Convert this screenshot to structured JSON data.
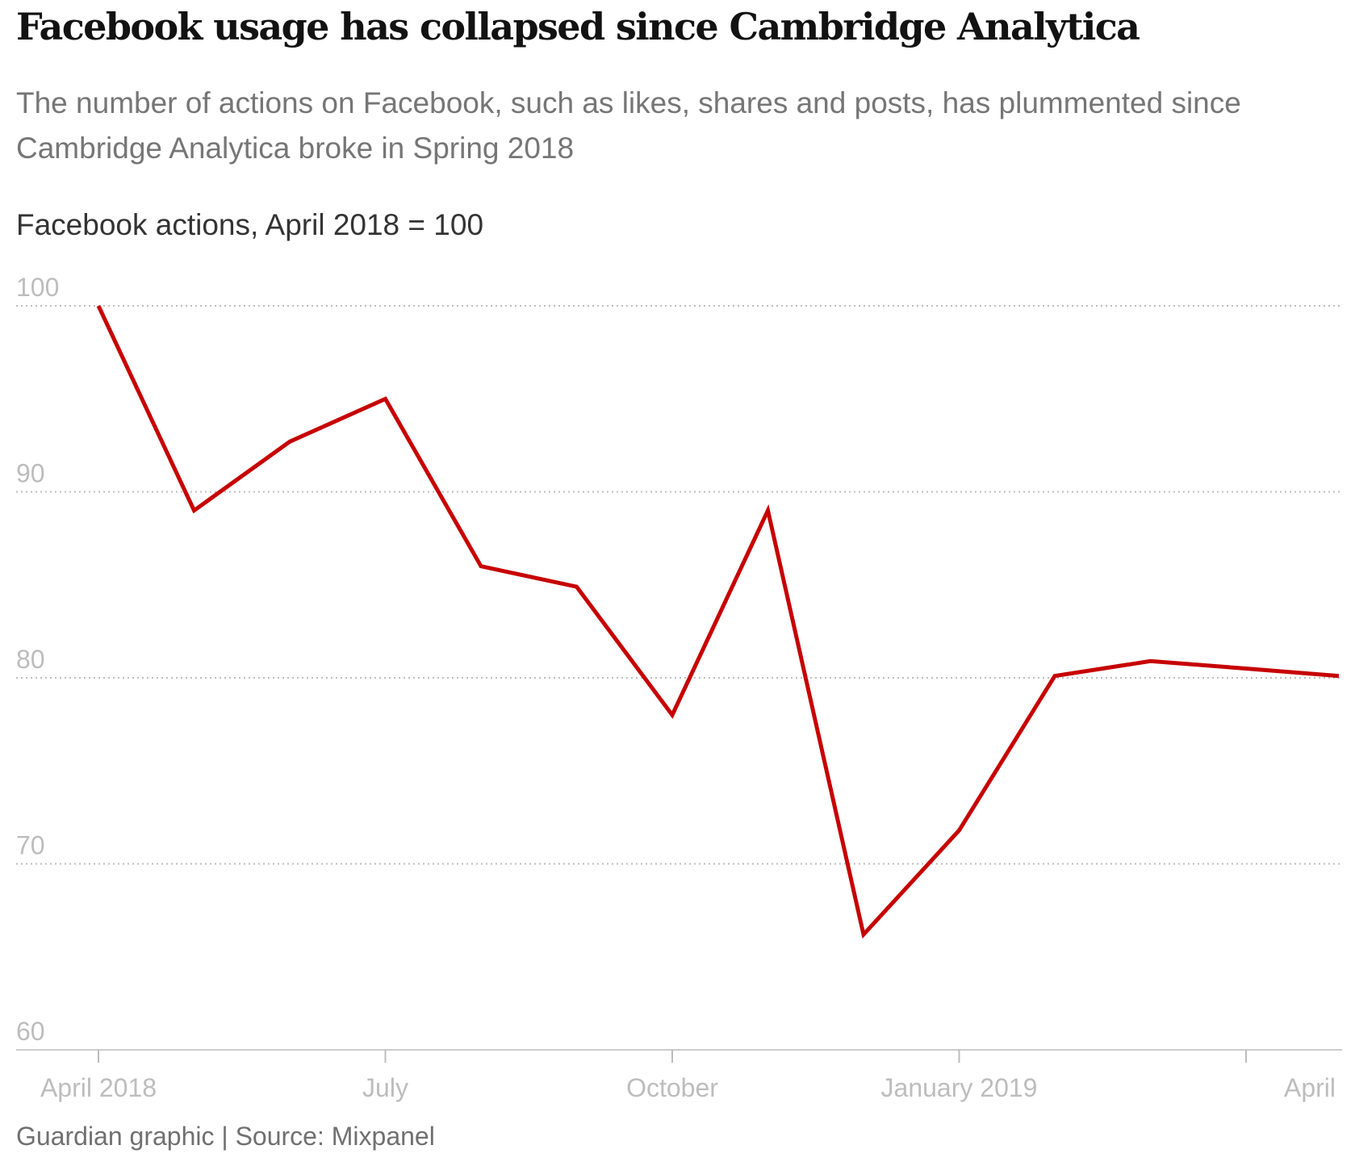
{
  "chart_data": {
    "type": "line",
    "title": "Facebook usage has collapsed since Cambridge Analytica",
    "subtitle": "The number of actions on Facebook, such as likes, shares and posts, has plummented since Cambridge Analytica broke in Spring 2018",
    "ylabel": "Facebook actions, April 2018 = 100",
    "xlabel": "",
    "footer": "Guardian graphic | Source: Mixpanel",
    "ylim": [
      60,
      100
    ],
    "yticks": [
      100,
      90,
      80,
      70,
      60
    ],
    "x_range": [
      0,
      13
    ],
    "xticks": [
      {
        "label": "April 2018",
        "x": 0
      },
      {
        "label": "July",
        "x": 3
      },
      {
        "label": "October",
        "x": 6
      },
      {
        "label": "January 2019",
        "x": 9
      },
      {
        "label": "April",
        "x": 12
      }
    ],
    "grid": true,
    "series": [
      {
        "name": "Facebook actions",
        "color": "#c70000",
        "x": [
          0,
          1,
          2,
          3,
          4,
          5,
          6,
          7,
          8,
          9,
          10,
          11,
          12,
          12.97
        ],
        "values": [
          100,
          89,
          92.7,
          95,
          86,
          84.9,
          78,
          89,
          66.2,
          71.8,
          80.1,
          80.9,
          80.5,
          80.1
        ]
      }
    ]
  }
}
